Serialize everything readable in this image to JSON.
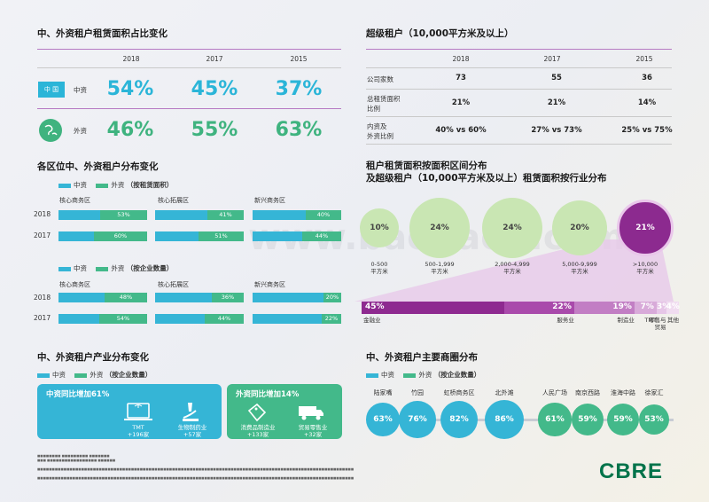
{
  "watermark": "www.baogao8.com",
  "share": {
    "title": "中、外资租户租赁面积占比变化",
    "years": [
      "2018",
      "2017",
      "2015"
    ],
    "rows": [
      {
        "label": "中资",
        "tag": "中 国",
        "values": [
          "54%",
          "45%",
          "37%"
        ],
        "color": "#2bb5d8"
      },
      {
        "label": "外资",
        "values": [
          "46%",
          "55%",
          "63%"
        ],
        "color": "#3fb37f"
      }
    ]
  },
  "super": {
    "title": "超级租户（10,000平方米及以上）",
    "years": [
      "2018",
      "2017",
      "2015"
    ],
    "rows": [
      {
        "label": "公司家数",
        "values": [
          "73",
          "55",
          "36"
        ]
      },
      {
        "label": "总租赁面积比例",
        "label1": "总租赁面积",
        "label2": "比例",
        "values": [
          "21%",
          "21%",
          "14%"
        ]
      },
      {
        "label": "内资及外资比例",
        "label1": "内资及",
        "label2": "外资比例",
        "values": [
          "40% vs 60%",
          "27% vs 73%",
          "25% vs 75%"
        ]
      }
    ]
  },
  "zone": {
    "title": "各区位中、外资租户分布变化",
    "legend_cn": "中资",
    "legend_fx": "外资",
    "area_caption": "（按租赁面积）",
    "count_caption": "（按企业数量）",
    "zones": [
      "核心商务区",
      "核心拓展区",
      "新兴商务区"
    ]
  },
  "chart_data": [
    {
      "type": "bar",
      "title": "各区位中、外资租户分布变化（按租赁面积）",
      "categories": [
        "核心商务区",
        "核心拓展区",
        "新兴商务区"
      ],
      "series": [
        {
          "name": "2018 外资",
          "values": [
            53,
            41,
            40
          ]
        },
        {
          "name": "2017 外资",
          "values": [
            60,
            51,
            44
          ]
        }
      ],
      "labels_2018": [
        "53%",
        "41%",
        "40%"
      ],
      "labels_2017": [
        "60%",
        "51%",
        "44%"
      ]
    },
    {
      "type": "bar",
      "title": "各区位中、外资租户分布变化（按企业数量）",
      "categories": [
        "核心商务区",
        "核心拓展区",
        "新兴商务区"
      ],
      "series": [
        {
          "name": "2018 外资",
          "values": [
            48,
            36,
            20
          ]
        },
        {
          "name": "2017 外资",
          "values": [
            54,
            44,
            22
          ]
        }
      ],
      "labels_2018": [
        "48%",
        "36%",
        "20%"
      ],
      "labels_2017": [
        "54%",
        "44%",
        "22%"
      ]
    },
    {
      "type": "bubble",
      "title_line1": "租户租赁面积按面积区间分布",
      "title_line2": "及超级租户（10,000平方米及以上）租赁面积按行业分布",
      "categories": [
        "0-500",
        "500-1,999",
        "2,000-4,999",
        "5,000-9,999",
        ">10,000"
      ],
      "unit": "平方米",
      "values": [
        10,
        24,
        24,
        20,
        21
      ],
      "labels": [
        "10%",
        "24%",
        "24%",
        "20%",
        "21%"
      ]
    },
    {
      "type": "bar",
      "title": "超级租户行业分布",
      "categories": [
        "金融业",
        "服务业",
        "制造业",
        "TMT",
        "零售与贸易",
        "其他"
      ],
      "values": [
        45,
        22,
        19,
        7,
        3,
        4
      ],
      "labels": [
        "45%",
        "22%",
        "19%",
        "7%",
        "3%",
        "4%"
      ],
      "names_display": [
        "金融业",
        "服务业",
        "制造业",
        "TMT",
        "零售与\n贸易",
        "其他"
      ]
    },
    {
      "type": "bubble",
      "title": "中、外资租户主要商圈分布",
      "categories": [
        "陆家嘴",
        "竹园",
        "虹桥商务区",
        "北外滩",
        "人民广场",
        "南京西路",
        "淮海中路",
        "徐家汇"
      ],
      "values": [
        63,
        76,
        82,
        86,
        61,
        59,
        59,
        53
      ],
      "labels": [
        "63%",
        "76%",
        "82%",
        "86%",
        "61%",
        "59%",
        "59%",
        "53%"
      ]
    }
  ],
  "industry": {
    "title": "中、外资租户产业分布变化",
    "legend_cn": "中资",
    "legend_fx": "外资",
    "caption": "（按企业数量）",
    "cn_box": {
      "title": "中资同比增加61%",
      "items": [
        {
          "name": "TMT",
          "value": "+196家"
        },
        {
          "name": "生物制药业",
          "value": "+57家"
        }
      ]
    },
    "fx_box": {
      "title": "外资同比增加14%",
      "items": [
        {
          "name": "消费品制造业",
          "value": "+133家"
        },
        {
          "name": "贸易零售业",
          "value": "+32家"
        }
      ]
    }
  },
  "districts": {
    "title": "中、外资租户主要商圈分布",
    "legend_cn": "中资",
    "legend_fx": "外资",
    "caption": "（按企业数量）"
  },
  "brand": {
    "logo": "CBRE",
    "color": "#00734a"
  }
}
